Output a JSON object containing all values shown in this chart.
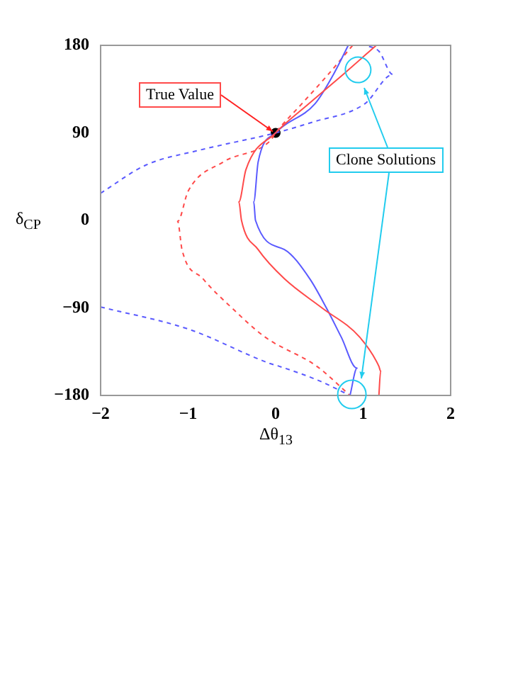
{
  "chart_data": {
    "type": "line",
    "xlabel": "Δθ$_{13}$",
    "ylabel": "δ$_{CP}$",
    "xlim": [
      -2,
      2
    ],
    "ylim": [
      -180,
      180
    ],
    "xticks": [
      {
        "value": -2,
        "label": "−2"
      },
      {
        "value": -1,
        "label": "−1"
      },
      0,
      1,
      2
    ],
    "yticks": [
      {
        "value": -180,
        "label": "−180"
      },
      {
        "value": -90,
        "label": "−90"
      },
      0,
      90,
      180
    ],
    "grid": false,
    "legend": false,
    "marker": "none",
    "annotations": [
      {
        "text": "True Value",
        "x": 0,
        "y": 90
      },
      "Clone Solutions"
    ],
    "series": [
      {
        "color": "#ff4a4a",
        "line_style": "solid",
        "x": [
          1.15,
          0.77,
          0.38,
          0,
          -0.34,
          -0.42,
          -0.39,
          -0.2,
          0.1,
          0.53,
          0.96,
          1.18,
          1.2,
          1.18
        ],
        "values": [
          180,
          150,
          120,
          90,
          52,
          19,
          0,
          -30,
          -60,
          -90,
          -120,
          -150,
          -155,
          -180
        ]
      },
      {
        "color": "#5a5aff",
        "line_style": "solid",
        "x": [
          0.83,
          0.66,
          0.45,
          0,
          -0.2,
          -0.25,
          -0.23,
          0.1,
          0.39,
          0.58,
          0.75,
          0.93,
          0.85
        ],
        "values": [
          180,
          150,
          120,
          90,
          60,
          19,
          0,
          -30,
          -60,
          -90,
          -120,
          -152,
          -180
        ]
      },
      {
        "color": "#ff4a4a",
        "line_style": "dashed",
        "x": [
          0.88,
          0.6,
          0.3,
          0,
          -0.06,
          -0.6,
          -1.0,
          -1.12,
          -1.07,
          -0.83,
          -0.5,
          -0.12,
          0.47,
          0.85
        ],
        "values": [
          180,
          150,
          120,
          90,
          82,
          60,
          30,
          -1,
          -30,
          -60,
          -90,
          -120,
          -150,
          -180
        ]
      },
      {
        "color": "#5a5aff",
        "line_style": "dashed",
        "x": [
          -2,
          -1.48,
          -0.88,
          0,
          0.42,
          1.02,
          1.34,
          1.18,
          1.02
        ],
        "values": [
          28,
          57,
          72,
          90,
          101,
          120,
          150,
          174,
          180
        ]
      },
      {
        "color": "#5a5aff",
        "line_style": "dashed",
        "x": [
          -2,
          -0.99,
          -0.07,
          0.04,
          0.5,
          0.85
        ],
        "values": [
          -89,
          -112,
          -147,
          -150,
          -165,
          -180
        ]
      },
      {
        "type": "scatter",
        "color": "#000000",
        "marker": "circle",
        "x": [
          0
        ],
        "values": [
          90
        ]
      }
    ]
  }
}
